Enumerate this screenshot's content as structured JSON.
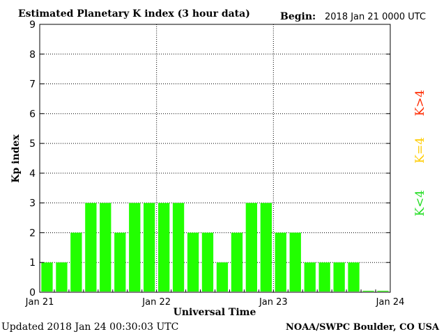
{
  "header": {
    "title": "Estimated Planetary K index (3 hour data)",
    "begin_label": "Begin:",
    "begin_value": "2018 Jan 21 0000 UTC"
  },
  "footer": {
    "updated": "Updated 2018 Jan 24 00:30:03 UTC",
    "source": "NOAA/SWPC Boulder, CO USA"
  },
  "legend": {
    "above": {
      "text": "K>4",
      "color": "#ff2a00"
    },
    "equal": {
      "text": "K=4",
      "color": "#ffcc00"
    },
    "below": {
      "text": "K<4",
      "color": "#22dd22"
    }
  },
  "chart_data": {
    "type": "bar",
    "title": "Estimated Planetary K index (3 hour data)",
    "xlabel": "Universal Time",
    "ylabel": "Kp index",
    "ylim": [
      0,
      9
    ],
    "yticks": [
      "0",
      "1",
      "2",
      "3",
      "4",
      "5",
      "6",
      "7",
      "8",
      "9"
    ],
    "xticks": [
      "Jan 21",
      "Jan 22",
      "Jan 23",
      "Jan 24"
    ],
    "grid": true,
    "bar_color": "#22ff00",
    "categories": [
      "Jan 21 00",
      "Jan 21 03",
      "Jan 21 06",
      "Jan 21 09",
      "Jan 21 12",
      "Jan 21 15",
      "Jan 21 18",
      "Jan 21 21",
      "Jan 22 00",
      "Jan 22 03",
      "Jan 22 06",
      "Jan 22 09",
      "Jan 22 12",
      "Jan 22 15",
      "Jan 22 18",
      "Jan 22 21",
      "Jan 23 00",
      "Jan 23 03",
      "Jan 23 06",
      "Jan 23 09",
      "Jan 23 12",
      "Jan 23 15",
      "Jan 23 18",
      "Jan 23 21"
    ],
    "values": [
      1,
      1,
      2,
      3,
      3,
      2,
      3,
      3,
      3,
      3,
      2,
      2,
      1,
      2,
      3,
      3,
      2,
      2,
      1,
      1,
      1,
      1,
      0,
      0
    ]
  }
}
